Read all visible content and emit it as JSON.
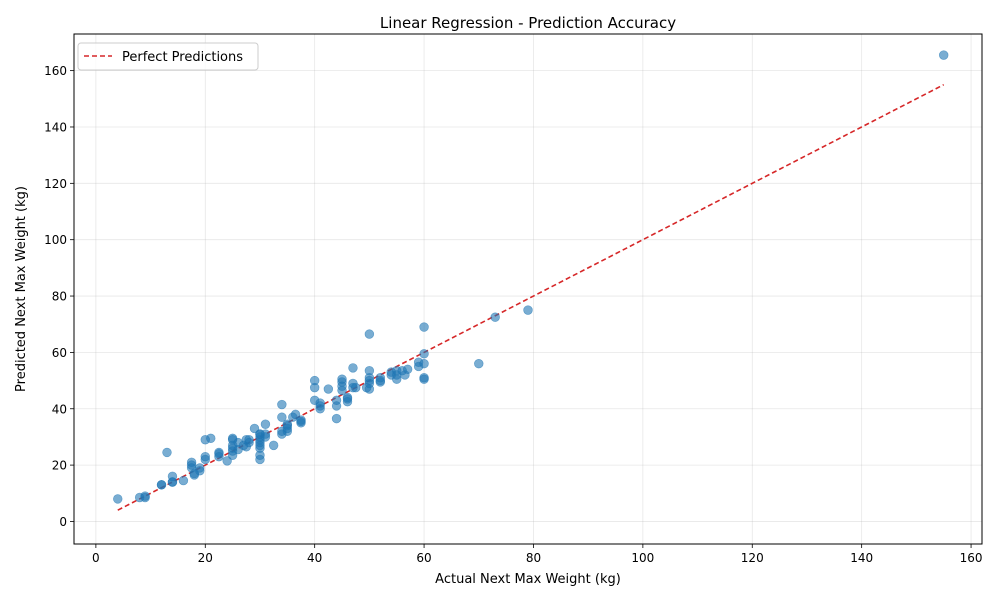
{
  "chart_data": {
    "type": "scatter",
    "title": "Linear Regression - Prediction Accuracy",
    "xlabel": "Actual Next Max Weight (kg)",
    "ylabel": "Predicted Next Max Weight (kg)",
    "xlim": [
      -4,
      162
    ],
    "ylim": [
      -8,
      173
    ],
    "xticks": [
      0,
      20,
      40,
      60,
      80,
      100,
      120,
      140,
      160
    ],
    "yticks": [
      0,
      20,
      40,
      60,
      80,
      100,
      120,
      140,
      160
    ],
    "grid": true,
    "legend_position": "upper-left",
    "colors": {
      "points": "#1f77b4",
      "reference_line": "#d62728"
    },
    "reference_line": {
      "name": "Perfect Predictions",
      "x": [
        4,
        155
      ],
      "y": [
        4,
        155
      ]
    },
    "points": [
      [
        4,
        8
      ],
      [
        8,
        8.5
      ],
      [
        9,
        8.5
      ],
      [
        9,
        9
      ],
      [
        12,
        13
      ],
      [
        12,
        13
      ],
      [
        13,
        24.5
      ],
      [
        14,
        14
      ],
      [
        14,
        14
      ],
      [
        14,
        16
      ],
      [
        16,
        14.5
      ],
      [
        17.5,
        21
      ],
      [
        17.5,
        20
      ],
      [
        17.5,
        19
      ],
      [
        18,
        17
      ],
      [
        18,
        16.5
      ],
      [
        19,
        18
      ],
      [
        19,
        19
      ],
      [
        20,
        22
      ],
      [
        20,
        23
      ],
      [
        20,
        29
      ],
      [
        21,
        29.5
      ],
      [
        22.5,
        23
      ],
      [
        22.5,
        24.5
      ],
      [
        22.5,
        24
      ],
      [
        24,
        21.5
      ],
      [
        25,
        23.5
      ],
      [
        25,
        25
      ],
      [
        25,
        26
      ],
      [
        25,
        27
      ],
      [
        25,
        29.5
      ],
      [
        25,
        29
      ],
      [
        26,
        25.5
      ],
      [
        26,
        28
      ],
      [
        27,
        27
      ],
      [
        27.5,
        26.5
      ],
      [
        27.5,
        29
      ],
      [
        28,
        28
      ],
      [
        28,
        29
      ],
      [
        29,
        33
      ],
      [
        30,
        22
      ],
      [
        30,
        23.5
      ],
      [
        30,
        26
      ],
      [
        30,
        27
      ],
      [
        30,
        28
      ],
      [
        30,
        29
      ],
      [
        30,
        30
      ],
      [
        30,
        31
      ],
      [
        30,
        31
      ],
      [
        31,
        30
      ],
      [
        31,
        31
      ],
      [
        31,
        34.5
      ],
      [
        32.5,
        27
      ],
      [
        34,
        31
      ],
      [
        34,
        32
      ],
      [
        34,
        37
      ],
      [
        34,
        41.5
      ],
      [
        35,
        32
      ],
      [
        35,
        33
      ],
      [
        35,
        34
      ],
      [
        35,
        34.5
      ],
      [
        36,
        37
      ],
      [
        36.5,
        38
      ],
      [
        37.5,
        36
      ],
      [
        37.5,
        35
      ],
      [
        37.5,
        35.5
      ],
      [
        40,
        43
      ],
      [
        40,
        47.5
      ],
      [
        40,
        50
      ],
      [
        41,
        40
      ],
      [
        41,
        42
      ],
      [
        41,
        41
      ],
      [
        42.5,
        47
      ],
      [
        44,
        36.5
      ],
      [
        44,
        41
      ],
      [
        44,
        43
      ],
      [
        45,
        46.5
      ],
      [
        45,
        48
      ],
      [
        45,
        49.5
      ],
      [
        45,
        50.5
      ],
      [
        46,
        42.5
      ],
      [
        46,
        44
      ],
      [
        46,
        43.5
      ],
      [
        47,
        47.5
      ],
      [
        47,
        49
      ],
      [
        47,
        54.5
      ],
      [
        47.5,
        47.5
      ],
      [
        49.5,
        47.5
      ],
      [
        50,
        47
      ],
      [
        50,
        49
      ],
      [
        50,
        50
      ],
      [
        50,
        51
      ],
      [
        50,
        53.5
      ],
      [
        50,
        66.5
      ],
      [
        52,
        49.5
      ],
      [
        52,
        51
      ],
      [
        52,
        50
      ],
      [
        54,
        52
      ],
      [
        54,
        53
      ],
      [
        55,
        53.5
      ],
      [
        55,
        50.5
      ],
      [
        55,
        52
      ],
      [
        56,
        53.5
      ],
      [
        56.5,
        52
      ],
      [
        57,
        54
      ],
      [
        59,
        55
      ],
      [
        59,
        56.5
      ],
      [
        60,
        50.5
      ],
      [
        60,
        51
      ],
      [
        60,
        56
      ],
      [
        60,
        59.5
      ],
      [
        60,
        69
      ],
      [
        70,
        56
      ],
      [
        73,
        72.5
      ],
      [
        79,
        75
      ],
      [
        155,
        165.5
      ]
    ]
  }
}
